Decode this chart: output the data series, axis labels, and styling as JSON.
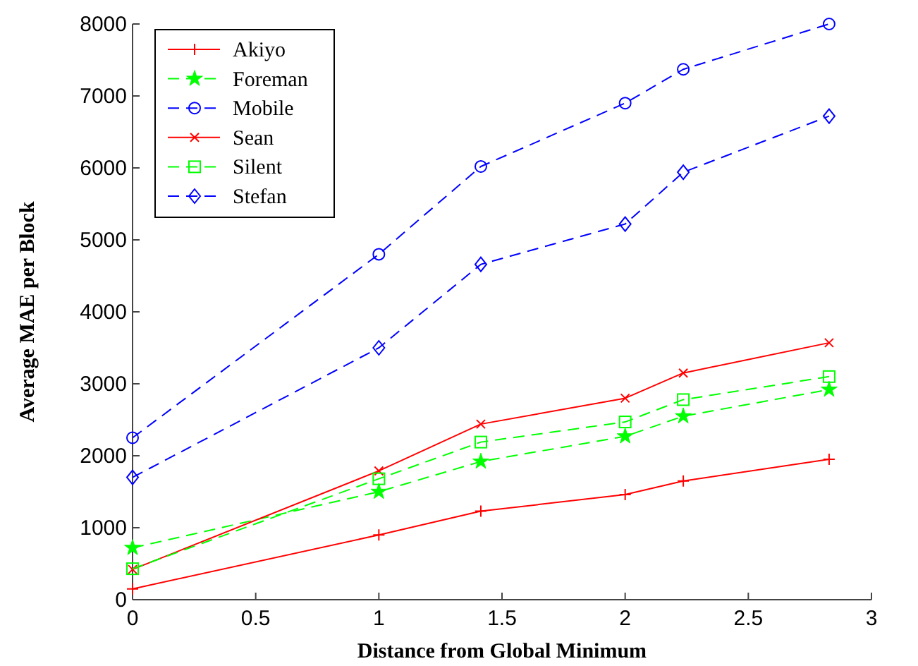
{
  "chart_data": {
    "type": "line",
    "xlabel": "Distance from Global Minimum",
    "ylabel": "Average MAE per Block",
    "x": [
      0,
      1,
      1.414,
      2,
      2.236,
      2.828
    ],
    "xlim": [
      0,
      3
    ],
    "xticks": [
      0,
      0.5,
      1,
      1.5,
      2,
      2.5,
      3
    ],
    "ylim": [
      0,
      8000
    ],
    "yticks": [
      0,
      1000,
      2000,
      3000,
      4000,
      5000,
      6000,
      7000,
      8000
    ],
    "grid": false,
    "legend": "top left",
    "series": [
      {
        "name": "Akiyo",
        "color": "#ff0000",
        "marker": "plus",
        "line_style": "solid",
        "values": [
          150,
          900,
          1230,
          1460,
          1650,
          1950
        ]
      },
      {
        "name": "Foreman",
        "color": "#00ff00",
        "marker": "star",
        "line_style": "dashed",
        "values": [
          720,
          1500,
          1920,
          2270,
          2550,
          2920
        ]
      },
      {
        "name": "Mobile",
        "color": "#0000ff",
        "marker": "circle",
        "line_style": "dashed",
        "values": [
          2250,
          4800,
          6020,
          6900,
          7370,
          8000
        ]
      },
      {
        "name": "Sean",
        "color": "#ff0000",
        "marker": "cross",
        "line_style": "solid",
        "values": [
          420,
          1790,
          2440,
          2800,
          3150,
          3570
        ]
      },
      {
        "name": "Silent",
        "color": "#00ff00",
        "marker": "square",
        "line_style": "dashed",
        "values": [
          430,
          1680,
          2190,
          2470,
          2780,
          3100
        ]
      },
      {
        "name": "Stefan",
        "color": "#0000ff",
        "marker": "diamond",
        "line_style": "dashed",
        "values": [
          1700,
          3500,
          4660,
          5220,
          5940,
          6720
        ]
      }
    ]
  }
}
